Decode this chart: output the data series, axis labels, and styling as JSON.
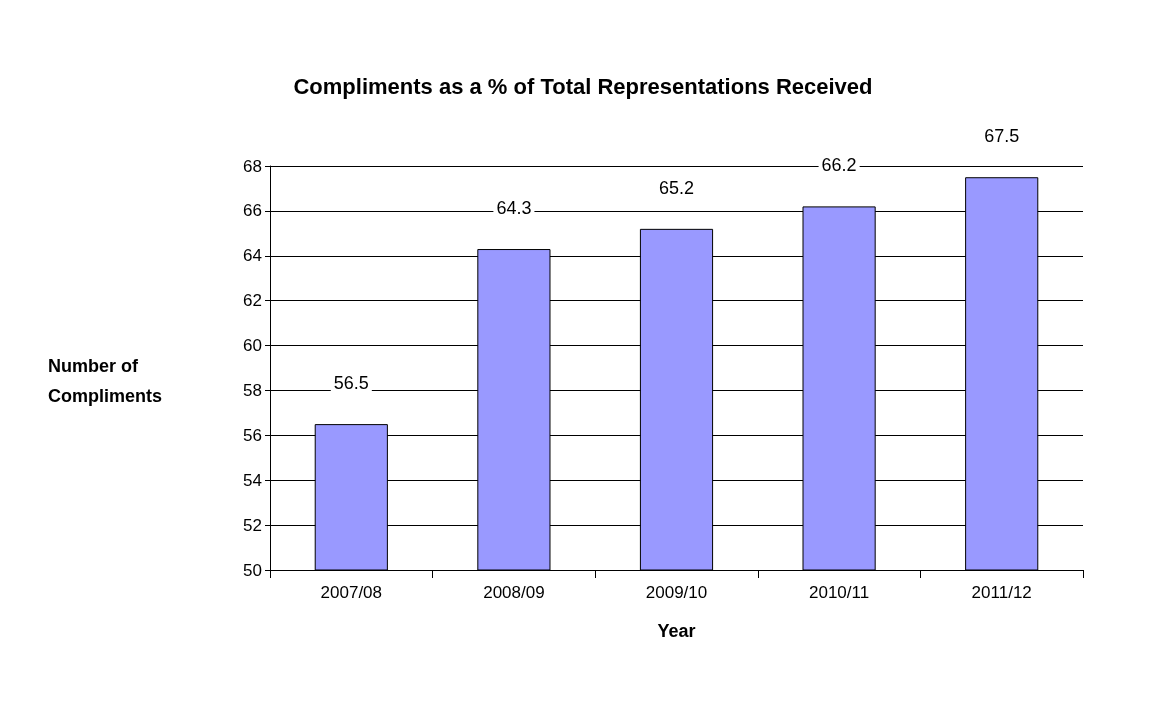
{
  "chart_data": {
    "type": "bar",
    "title": "Compliments as a % of Total Representations Received",
    "xlabel": "Year",
    "ylabel": "Number of Compliments",
    "categories": [
      "2007/08",
      "2008/09",
      "2009/10",
      "2010/11",
      "2011/12"
    ],
    "values": [
      56.5,
      64.3,
      65.2,
      66.2,
      67.5
    ],
    "color": "#9999ff",
    "ylim": [
      50,
      68
    ],
    "yticks": [
      50,
      52,
      54,
      56,
      58,
      60,
      62,
      64,
      66,
      68
    ],
    "grid": "y",
    "data_labels": true
  }
}
